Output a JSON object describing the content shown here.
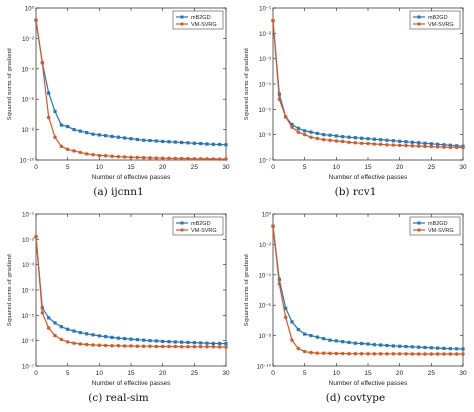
{
  "figure": {
    "ylabel": "Squared norm of gradient",
    "xlabel": "Number of effective passes",
    "legend": [
      "mB2GD",
      "VM-SVRG"
    ]
  },
  "colors": {
    "mb2gd": "#1f77c4",
    "vmsvrg": "#e0541f",
    "axis": "#222222",
    "grid": "#c8c8c8"
  },
  "chart_data": [
    {
      "type": "line",
      "caption": "(a)  ijcnn1",
      "xlabel": "Number of effective passes",
      "ylabel": "Squared norm of gradient",
      "xlim": [
        0,
        30
      ],
      "ylim_log10": [
        -10,
        0
      ],
      "xticks": [
        "0",
        "5",
        "10",
        "15",
        "20",
        "25",
        "30"
      ],
      "yticks": [
        {
          "v": -10,
          "t": "10⁻¹⁰"
        },
        {
          "v": -8,
          "t": "10⁻⁸"
        },
        {
          "v": -6,
          "t": "10⁻⁶"
        },
        {
          "v": -4,
          "t": "10⁻⁴"
        },
        {
          "v": -2,
          "t": "10⁻²"
        },
        {
          "v": 0,
          "t": "10⁰"
        }
      ],
      "legend_position": "top-right",
      "x": [
        0,
        1,
        2,
        3,
        4,
        5,
        6,
        7,
        8,
        9,
        10,
        11,
        12,
        13,
        14,
        15,
        16,
        17,
        18,
        19,
        20,
        21,
        22,
        23,
        24,
        25,
        26,
        27,
        28,
        29,
        30
      ],
      "series": [
        {
          "name": "mB2GD",
          "log10_values": [
            -0.8,
            -3.6,
            -5.6,
            -6.8,
            -7.7,
            -7.8,
            -8.0,
            -8.1,
            -8.2,
            -8.3,
            -8.35,
            -8.4,
            -8.45,
            -8.5,
            -8.55,
            -8.6,
            -8.65,
            -8.7,
            -8.72,
            -8.75,
            -8.78,
            -8.8,
            -8.82,
            -8.85,
            -8.87,
            -8.9,
            -8.92,
            -8.95,
            -8.97,
            -8.98,
            -9.0
          ]
        },
        {
          "name": "VM-SVRG",
          "log10_values": [
            -0.8,
            -3.6,
            -7.2,
            -8.5,
            -9.1,
            -9.3,
            -9.4,
            -9.5,
            -9.6,
            -9.65,
            -9.7,
            -9.72,
            -9.75,
            -9.78,
            -9.8,
            -9.82,
            -9.83,
            -9.85,
            -9.86,
            -9.87,
            -9.88,
            -9.89,
            -9.9,
            -9.9,
            -9.91,
            -9.92,
            -9.92,
            -9.93,
            -9.93,
            -9.94,
            -9.94
          ]
        }
      ]
    },
    {
      "type": "line",
      "caption": "(b)  rcv1",
      "xlabel": "Number of effective passes",
      "ylabel": "Squared norm of gradient",
      "xlim": [
        0,
        30
      ],
      "ylim_log10": [
        -7,
        -1
      ],
      "xticks": [
        "0",
        "5",
        "10",
        "15",
        "20",
        "25",
        "30"
      ],
      "yticks": [
        {
          "v": -7,
          "t": "10⁻⁷"
        },
        {
          "v": -6,
          "t": "10⁻⁶"
        },
        {
          "v": -5,
          "t": "10⁻⁵"
        },
        {
          "v": -4,
          "t": "10⁻⁴"
        },
        {
          "v": -3,
          "t": "10⁻³"
        },
        {
          "v": -2,
          "t": "10⁻²"
        },
        {
          "v": -1,
          "t": "10⁻¹"
        }
      ],
      "legend_position": "top-right",
      "x": [
        0,
        1,
        2,
        3,
        4,
        5,
        6,
        7,
        8,
        9,
        10,
        11,
        12,
        13,
        14,
        15,
        16,
        17,
        18,
        19,
        20,
        21,
        22,
        23,
        24,
        25,
        26,
        27,
        28,
        29,
        30
      ],
      "series": [
        {
          "name": "mB2GD",
          "log10_values": [
            -1.5,
            -4.4,
            -5.3,
            -5.6,
            -5.75,
            -5.85,
            -5.9,
            -5.95,
            -6.0,
            -6.02,
            -6.05,
            -6.08,
            -6.1,
            -6.12,
            -6.14,
            -6.16,
            -6.18,
            -6.2,
            -6.22,
            -6.24,
            -6.26,
            -6.28,
            -6.3,
            -6.32,
            -6.34,
            -6.36,
            -6.38,
            -6.4,
            -6.42,
            -6.44,
            -6.46
          ]
        },
        {
          "name": "VM-SVRG",
          "log10_values": [
            -1.5,
            -4.6,
            -5.3,
            -5.7,
            -5.9,
            -6.0,
            -6.1,
            -6.15,
            -6.2,
            -6.22,
            -6.25,
            -6.27,
            -6.3,
            -6.32,
            -6.34,
            -6.35,
            -6.37,
            -6.38,
            -6.4,
            -6.41,
            -6.42,
            -6.43,
            -6.44,
            -6.45,
            -6.46,
            -6.47,
            -6.48,
            -6.49,
            -6.5,
            -6.5,
            -6.51
          ]
        }
      ]
    },
    {
      "type": "line",
      "caption": "(c)  real-sim",
      "xlabel": "Number of effective passes",
      "ylabel": "Squared norm of gradient",
      "xlim": [
        0,
        30
      ],
      "ylim_log10": [
        -7,
        -1
      ],
      "xticks": [
        "0",
        "5",
        "10",
        "15",
        "20",
        "25",
        "30"
      ],
      "yticks": [
        {
          "v": -7,
          "t": "10⁻⁷"
        },
        {
          "v": -6,
          "t": "10⁻⁶"
        },
        {
          "v": -5,
          "t": "10⁻⁵"
        },
        {
          "v": -4,
          "t": "10⁻⁴"
        },
        {
          "v": -3,
          "t": "10⁻³"
        },
        {
          "v": -2,
          "t": "10⁻²"
        },
        {
          "v": -1,
          "t": "10⁻¹"
        }
      ],
      "legend_position": "top-right",
      "x": [
        0,
        1,
        2,
        3,
        4,
        5,
        6,
        7,
        8,
        9,
        10,
        11,
        12,
        13,
        14,
        15,
        16,
        17,
        18,
        19,
        20,
        21,
        22,
        23,
        24,
        25,
        26,
        27,
        28,
        29,
        30
      ],
      "series": [
        {
          "name": "mB2GD",
          "log10_values": [
            -1.9,
            -4.7,
            -5.1,
            -5.3,
            -5.45,
            -5.55,
            -5.62,
            -5.68,
            -5.73,
            -5.77,
            -5.81,
            -5.84,
            -5.87,
            -5.9,
            -5.92,
            -5.94,
            -5.96,
            -5.98,
            -6.0,
            -6.01,
            -6.03,
            -6.04,
            -6.05,
            -6.06,
            -6.07,
            -6.08,
            -6.09,
            -6.1,
            -6.11,
            -6.11,
            -6.12
          ]
        },
        {
          "name": "VM-SVRG",
          "log10_values": [
            -1.9,
            -4.9,
            -5.5,
            -5.8,
            -5.95,
            -6.05,
            -6.1,
            -6.13,
            -6.15,
            -6.17,
            -6.18,
            -6.19,
            -6.2,
            -6.2,
            -6.21,
            -6.21,
            -6.22,
            -6.22,
            -6.22,
            -6.23,
            -6.23,
            -6.23,
            -6.23,
            -6.24,
            -6.24,
            -6.24,
            -6.24,
            -6.24,
            -6.24,
            -6.25,
            -6.25
          ]
        }
      ]
    },
    {
      "type": "line",
      "caption": "(d)  covtype",
      "xlabel": "Number of effective passes",
      "ylabel": "Squared norm of gradient",
      "xlim": [
        0,
        30
      ],
      "ylim_log10": [
        -10,
        0
      ],
      "xticks": [
        "0",
        "5",
        "10",
        "15",
        "20",
        "25",
        "30"
      ],
      "yticks": [
        {
          "v": -10,
          "t": "10⁻¹⁰"
        },
        {
          "v": -8,
          "t": "10⁻⁸"
        },
        {
          "v": -6,
          "t": "10⁻⁶"
        },
        {
          "v": -4,
          "t": "10⁻⁴"
        },
        {
          "v": -2,
          "t": "10⁻²"
        },
        {
          "v": 0,
          "t": "10⁰"
        }
      ],
      "legend_position": "top-right",
      "x": [
        0,
        1,
        2,
        3,
        4,
        5,
        6,
        7,
        8,
        9,
        10,
        11,
        12,
        13,
        14,
        15,
        16,
        17,
        18,
        19,
        20,
        21,
        22,
        23,
        24,
        25,
        26,
        27,
        28,
        29,
        30
      ],
      "series": [
        {
          "name": "mB2GD",
          "log10_values": [
            -0.8,
            -4.3,
            -6.2,
            -7.1,
            -7.6,
            -7.9,
            -8.0,
            -8.1,
            -8.2,
            -8.3,
            -8.35,
            -8.4,
            -8.45,
            -8.5,
            -8.52,
            -8.55,
            -8.6,
            -8.62,
            -8.65,
            -8.68,
            -8.7,
            -8.72,
            -8.74,
            -8.76,
            -8.78,
            -8.8,
            -8.82,
            -8.84,
            -8.86,
            -8.87,
            -8.88
          ]
        },
        {
          "name": "VM-SVRG",
          "log10_values": [
            -0.8,
            -4.6,
            -6.8,
            -8.3,
            -8.85,
            -9.05,
            -9.12,
            -9.15,
            -9.16,
            -9.17,
            -9.18,
            -9.18,
            -9.19,
            -9.19,
            -9.19,
            -9.2,
            -9.2,
            -9.2,
            -9.2,
            -9.2,
            -9.2,
            -9.2,
            -9.21,
            -9.21,
            -9.21,
            -9.21,
            -9.21,
            -9.21,
            -9.21,
            -9.21,
            -9.21
          ]
        }
      ]
    }
  ]
}
